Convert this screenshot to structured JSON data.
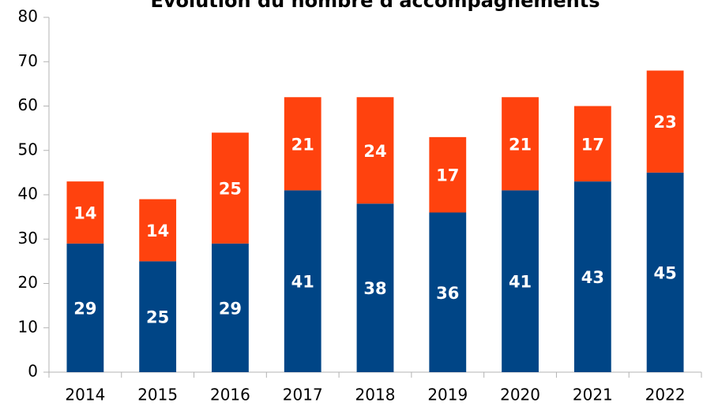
{
  "chart_data": {
    "type": "stacked-bar",
    "title": "Évolution du nombre d'accompagnements",
    "categories": [
      "2014",
      "2015",
      "2016",
      "2017",
      "2018",
      "2019",
      "2020",
      "2021",
      "2022"
    ],
    "series": [
      {
        "color": "#004586",
        "values": [
          29,
          25,
          29,
          41,
          38,
          36,
          41,
          43,
          45
        ]
      },
      {
        "color": "#ff420e",
        "values": [
          14,
          14,
          25,
          21,
          24,
          17,
          21,
          17,
          23
        ]
      }
    ],
    "ylim": [
      0,
      80
    ],
    "yticks": [
      0,
      10,
      20,
      30,
      40,
      50,
      60,
      70,
      80
    ],
    "grid": false
  }
}
